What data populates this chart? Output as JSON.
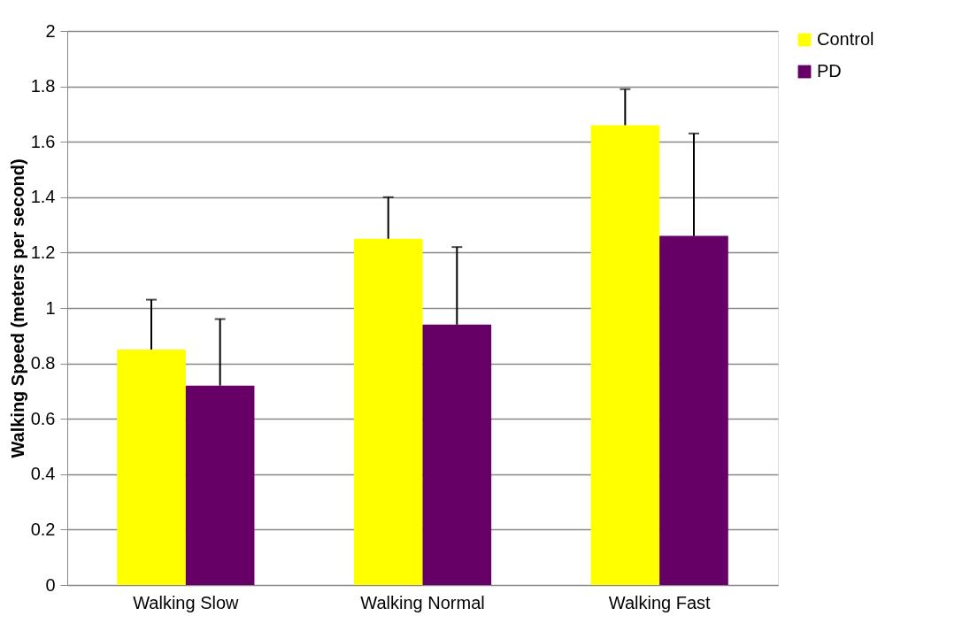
{
  "chart_data": {
    "type": "bar",
    "ylabel": "Walking Speed (meters per second)",
    "categories": [
      "Walking Slow",
      "Walking Normal",
      "Walking Fast"
    ],
    "series": [
      {
        "name": "Control",
        "color": "#ffff00",
        "values": [
          0.85,
          1.25,
          1.66
        ],
        "errors": [
          [
            0.85,
            1.03
          ],
          [
            1.25,
            1.4
          ],
          [
            1.66,
            1.79
          ]
        ]
      },
      {
        "name": "PD",
        "color": "#660066",
        "values": [
          0.72,
          0.94,
          1.26
        ],
        "errors": [
          [
            0.72,
            0.96
          ],
          [
            0.94,
            1.22
          ],
          [
            1.26,
            1.63
          ]
        ]
      }
    ],
    "ylim": [
      0,
      2
    ],
    "yticks": [
      0,
      0.2,
      0.4,
      0.6,
      0.8,
      1,
      1.2,
      1.4,
      1.6,
      1.8,
      2
    ],
    "grid": "y",
    "legend": "right"
  }
}
